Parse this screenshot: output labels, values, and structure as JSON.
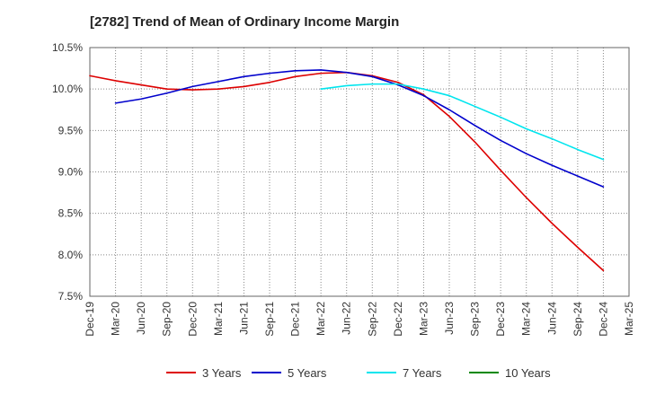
{
  "chart_data": {
    "type": "line",
    "title": "[2782]  Trend of Mean of Ordinary Income Margin",
    "xlabel": "",
    "ylabel": "",
    "categories": [
      "Dec-19",
      "Mar-20",
      "Jun-20",
      "Sep-20",
      "Dec-20",
      "Mar-21",
      "Jun-21",
      "Sep-21",
      "Dec-21",
      "Mar-22",
      "Jun-22",
      "Sep-22",
      "Dec-22",
      "Mar-23",
      "Jun-23",
      "Sep-23",
      "Dec-23",
      "Mar-24",
      "Jun-24",
      "Sep-24",
      "Dec-24",
      "Mar-25"
    ],
    "y_tick_labels": [
      "10.5%",
      "10.0%",
      "9.5%",
      "9.0%",
      "8.5%",
      "8.0%",
      "7.5%"
    ],
    "y_ticks": [
      10.5,
      10.0,
      9.5,
      9.0,
      8.5,
      8.0,
      7.5
    ],
    "ylim": [
      7.5,
      10.5
    ],
    "grid": true,
    "legend_position": "bottom",
    "series": [
      {
        "name": "3 Years",
        "color": "#dd0000",
        "values": [
          10.16,
          10.1,
          10.05,
          10.0,
          9.99,
          10.0,
          10.03,
          10.08,
          10.15,
          10.19,
          10.2,
          10.16,
          10.08,
          9.93,
          9.67,
          9.36,
          9.02,
          8.69,
          8.38,
          8.09,
          7.81,
          null
        ]
      },
      {
        "name": "5 Years",
        "color": "#0000cc",
        "values": [
          null,
          9.83,
          9.88,
          9.95,
          10.03,
          10.09,
          10.15,
          10.19,
          10.22,
          10.23,
          10.2,
          10.15,
          10.05,
          9.92,
          9.75,
          9.56,
          9.38,
          9.22,
          9.08,
          8.95,
          8.82,
          null
        ]
      },
      {
        "name": "7 Years",
        "color": "#00e5ee",
        "values": [
          null,
          null,
          null,
          null,
          null,
          null,
          null,
          null,
          null,
          10.0,
          10.04,
          10.06,
          10.06,
          10.0,
          9.92,
          9.79,
          9.66,
          9.52,
          9.4,
          9.27,
          9.15,
          null
        ]
      },
      {
        "name": "10 Years",
        "color": "#008800",
        "values": [
          null,
          null,
          null,
          null,
          null,
          null,
          null,
          null,
          null,
          null,
          null,
          null,
          null,
          null,
          null,
          null,
          null,
          null,
          null,
          null,
          null,
          null
        ]
      }
    ]
  }
}
